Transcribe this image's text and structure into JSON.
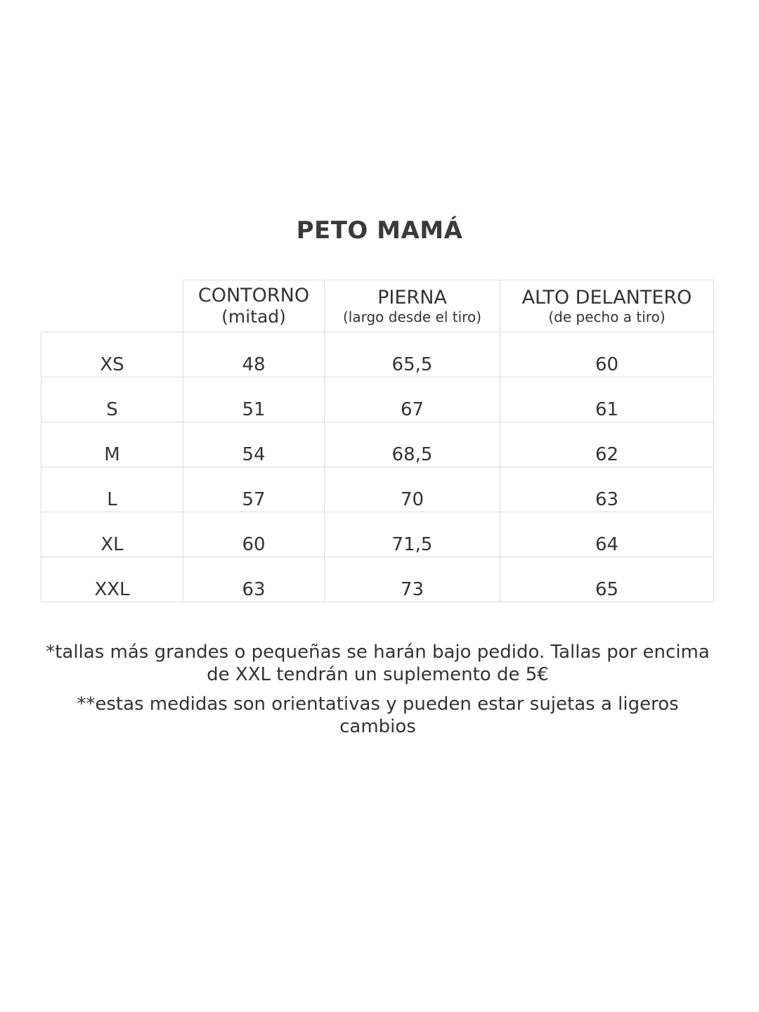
{
  "title": "PETO MAMÁ",
  "table": {
    "headers": [
      {
        "main": "CONTORNO",
        "sub": "(mitad)"
      },
      {
        "main": "PIERNA",
        "sub": "(largo desde el tiro)"
      },
      {
        "main": "ALTO DELANTERO",
        "sub": "(de pecho a tiro)"
      }
    ],
    "rows": [
      {
        "size": "XS",
        "values": [
          "48",
          "65,5",
          "60"
        ]
      },
      {
        "size": "S",
        "values": [
          "51",
          "67",
          "61"
        ]
      },
      {
        "size": "M",
        "values": [
          "54",
          "68,5",
          "62"
        ]
      },
      {
        "size": "L",
        "values": [
          "57",
          "70",
          "63"
        ]
      },
      {
        "size": "XL",
        "values": [
          "60",
          "71,5",
          "64"
        ]
      },
      {
        "size": "XXL",
        "values": [
          "63",
          "73",
          "65"
        ]
      }
    ]
  },
  "notes": [
    "*tallas más grandes o pequeñas se harán bajo pedido. Tallas por encima de XXL tendrán un suplemento de 5€",
    "**estas medidas son orientativas y pueden estar sujetas a ligeros cambios"
  ]
}
